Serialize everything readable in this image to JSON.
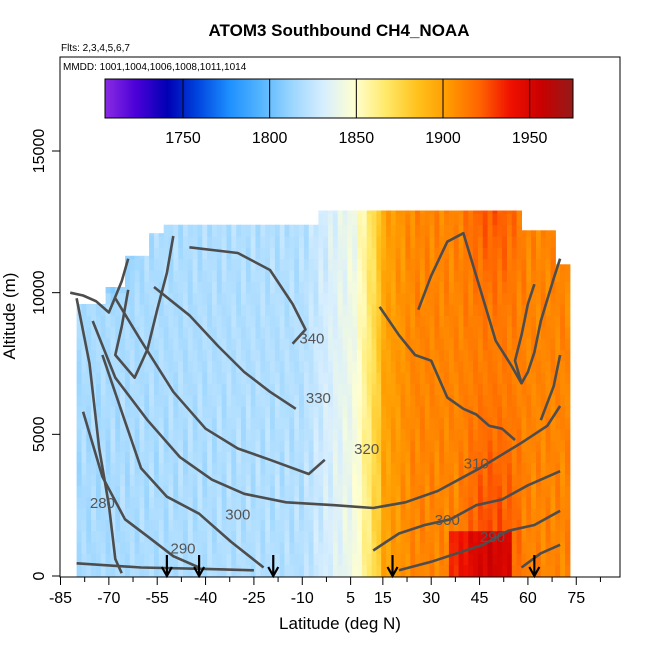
{
  "chart_data": {
    "type": "heatmap",
    "title": "ATOM3 Southbound CH4_NOAA",
    "flights_note": "Flts: 2,3,4,5,6,7",
    "dates_note": "MMDD: 1001,1004,1006,1008,1011,1014",
    "xlabel": "Latitude (deg N)",
    "ylabel": "Altitude (m)",
    "xlim": [
      -85,
      85
    ],
    "ylim": [
      0,
      17500
    ],
    "x_tick_labels": [
      "-85",
      "-70",
      "-55",
      "-40",
      "-25",
      "-10",
      "5",
      "15",
      "30",
      "45",
      "60",
      "75"
    ],
    "x_tick_values": [
      -85,
      -70,
      -55,
      -40,
      -25,
      -10,
      5,
      15,
      30,
      45,
      60,
      75
    ],
    "x_minor_ticks": [
      -77.5,
      -62.5,
      -47.5,
      -32.5,
      -17.5,
      -2.5,
      22.5,
      37.5,
      52.5,
      67.5,
      82.5
    ],
    "y_tick_labels": [
      "0",
      "5000",
      "10000",
      "15000"
    ],
    "y_tick_values": [
      0,
      5000,
      10000,
      15000
    ],
    "colorbar": {
      "min": 1705,
      "max": 1975,
      "tick_labels": [
        "1750",
        "1800",
        "1850",
        "1900",
        "1950"
      ],
      "tick_values": [
        1750,
        1800,
        1850,
        1900,
        1950
      ],
      "colors": [
        "#8a2be2",
        "#4b00d8",
        "#0000b4",
        "#0047e0",
        "#1e90ff",
        "#55b5ff",
        "#9cd6ff",
        "#d7eeff",
        "#ffffd0",
        "#ffe96a",
        "#ffc21c",
        "#ff9a00",
        "#ff6400",
        "#f01000",
        "#c80000",
        "#951a1a"
      ]
    },
    "field_description": "CH4 mixing ratio (ppb) on a latitude-altitude curtain; low (~1800-1830) in the Southern Hemisphere, transition near 10-15 N, high (~1900-1930) in the Northern Hemisphere with peaks near 1950 at 45-60 N",
    "data_extent": {
      "lat_min": -80,
      "lat_max": 72,
      "alt_max": 12900
    },
    "potential_temperature_contours": {
      "units": "K",
      "levels": [
        280,
        290,
        300,
        310,
        320,
        330,
        340
      ],
      "labels": [
        "280",
        "290",
        "300",
        "310",
        "320",
        "330",
        "340"
      ],
      "label_positions": [
        {
          "label": "280",
          "lat": -72,
          "alt": 2400
        },
        {
          "label": "290",
          "lat": -47,
          "alt": 800
        },
        {
          "label": "300",
          "lat": -30,
          "alt": 2000
        },
        {
          "label": "320",
          "lat": 10,
          "alt": 4300
        },
        {
          "label": "330",
          "lat": -5,
          "alt": 6100
        },
        {
          "label": "340",
          "lat": -7,
          "alt": 8200
        },
        {
          "label": "310",
          "lat": 44,
          "alt": 3800
        },
        {
          "label": "300",
          "lat": 35,
          "alt": 1800
        },
        {
          "label": "290",
          "lat": 49,
          "alt": 1200
        }
      ]
    },
    "profile_markers_lat": [
      -52,
      -42,
      -19,
      18,
      62
    ]
  }
}
